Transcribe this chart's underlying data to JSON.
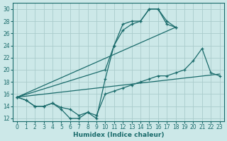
{
  "xlabel": "Humidex (Indice chaleur)",
  "xlim": [
    -0.5,
    23.5
  ],
  "ylim": [
    11.5,
    31
  ],
  "xticks": [
    0,
    1,
    2,
    3,
    4,
    5,
    6,
    7,
    8,
    9,
    10,
    11,
    12,
    13,
    14,
    15,
    16,
    17,
    18,
    19,
    20,
    21,
    22,
    23
  ],
  "yticks": [
    12,
    14,
    16,
    18,
    20,
    22,
    24,
    26,
    28,
    30
  ],
  "bg_color": "#cce8e8",
  "grid_color": "#aacccc",
  "line_color": "#1a6b6b",
  "line1_x": [
    0,
    1,
    2,
    3,
    4,
    5,
    6,
    7,
    8,
    9,
    10,
    11,
    12,
    13,
    14,
    15,
    16,
    17,
    18
  ],
  "line1_y": [
    15.5,
    15.0,
    14.0,
    14.0,
    14.5,
    13.5,
    12.0,
    12.0,
    13.0,
    12.0,
    18.5,
    24.0,
    26.5,
    27.5,
    28.0,
    30.0,
    30.0,
    28.0,
    27.0
  ],
  "line2_x": [
    0,
    1,
    2,
    3,
    4,
    5,
    6,
    7,
    8,
    9,
    10,
    11,
    12,
    13,
    14,
    15,
    16,
    17,
    18,
    19,
    20,
    21,
    22,
    23
  ],
  "line2_y": [
    15.5,
    15.0,
    14.0,
    14.0,
    14.5,
    13.8,
    13.5,
    12.5,
    13.0,
    12.5,
    16.0,
    16.5,
    17.0,
    17.5,
    18.0,
    18.5,
    19.0,
    19.0,
    19.5,
    20.0,
    21.5,
    23.5,
    19.5,
    19.0
  ],
  "line3_x": [
    0,
    23
  ],
  "line3_y": [
    15.5,
    19.3
  ],
  "line4_x": [
    0,
    18
  ],
  "line4_y": [
    15.5,
    27.0
  ],
  "line5_x": [
    0,
    10,
    11,
    12,
    13,
    14,
    15,
    16,
    17,
    18
  ],
  "line5_y": [
    15.5,
    20.0,
    24.0,
    27.5,
    28.0,
    28.0,
    30.0,
    30.0,
    27.5,
    27.0
  ]
}
